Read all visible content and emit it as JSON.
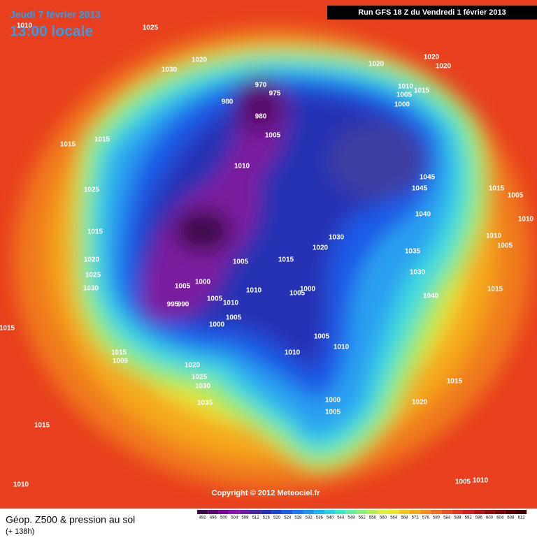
{
  "header": {
    "date": "Jeudi 7 février 2013",
    "time": "13:00 locale",
    "run": "Run GFS 18 Z du Vendredi 1 février 2013"
  },
  "isobar_labels": [
    "1010",
    "1025",
    "1020",
    "1030",
    "1020",
    "1020",
    "1020",
    "970",
    "975",
    "980",
    "980",
    "1010",
    "1005",
    "1015",
    "1000",
    "1005",
    "1015",
    "1015",
    "1010",
    "1045",
    "1045",
    "1015",
    "1005",
    "1025",
    "1040",
    "1010",
    "1015",
    "1010",
    "1005",
    "1020",
    "1030",
    "1020",
    "1005",
    "1015",
    "1035",
    "1025",
    "1030",
    "1030",
    "1000",
    "1005",
    "1000",
    "1005",
    "1010",
    "1015",
    "1040",
    "1005",
    "1010",
    "995",
    "990",
    "1005",
    "1000",
    "1015",
    "1005",
    "1010",
    "1010",
    "1015",
    "1009",
    "1020",
    "1025",
    "1030",
    "1015",
    "1000",
    "1020",
    "1035",
    "1005",
    "1015",
    "1010",
    "1005",
    "1010"
  ],
  "copyright": "Copyright © 2012 Meteociel.fr",
  "footer": {
    "title": "Géop. Z500 & pression au sol",
    "lead": "(+ 138h)"
  },
  "colorbar": {
    "labels": [
      492,
      496,
      500,
      504,
      508,
      512,
      516,
      520,
      524,
      528,
      532,
      536,
      540,
      544,
      548,
      552,
      556,
      560,
      564,
      568,
      572,
      576,
      580,
      584,
      588,
      592,
      596,
      600,
      604,
      608,
      612
    ],
    "colors": [
      "#3c0a46",
      "#5a0a6e",
      "#780a96",
      "#8c14b4",
      "#6e1eaa",
      "#4628a0",
      "#2832b4",
      "#1e46d2",
      "#1e5ae6",
      "#1e78f0",
      "#1e96f0",
      "#1eb4f0",
      "#28d2e6",
      "#3ce6c8",
      "#64f0a0",
      "#8cf078",
      "#b4f050",
      "#dcf03c",
      "#f0e628",
      "#f5c81e",
      "#f5aa1e",
      "#f58c1e",
      "#f06e1e",
      "#eb501e",
      "#e6321e",
      "#d21e1e",
      "#b41414",
      "#960a0a",
      "#780a0a",
      "#5a0505",
      "#3c0000"
    ]
  }
}
